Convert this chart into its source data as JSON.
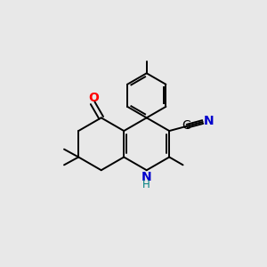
{
  "background_color": "#e8e8e8",
  "bond_color": "#000000",
  "atom_colors": {
    "O": "#ff0000",
    "N": "#0000cc",
    "C_label": "#000000",
    "H_label": "#008080"
  },
  "figsize": [
    3.0,
    3.0
  ],
  "dpi": 100
}
